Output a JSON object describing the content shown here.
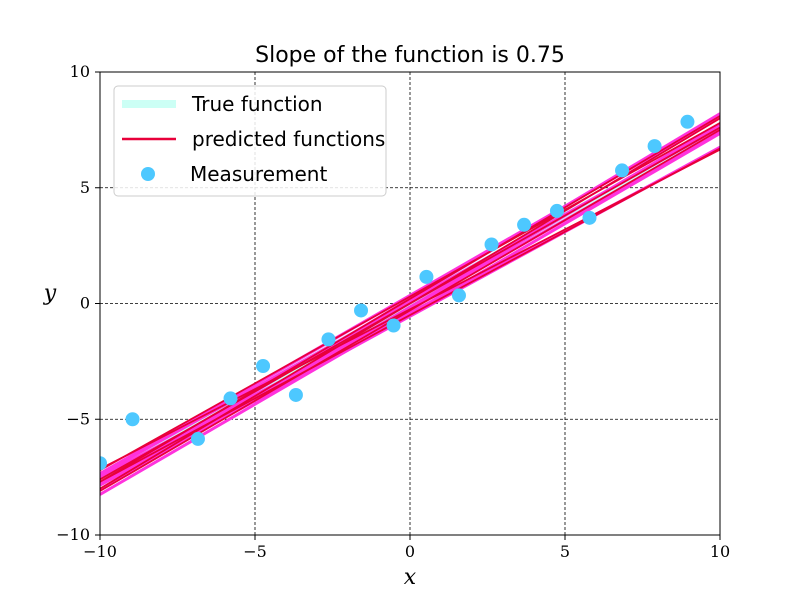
{
  "chart_data": {
    "type": "scatter",
    "title": "Slope of the function is 0.75",
    "xlabel": "x",
    "ylabel": "y",
    "xlim": [
      -10,
      10
    ],
    "ylim": [
      -10,
      10
    ],
    "xticks": [
      -10,
      -5,
      0,
      5,
      10
    ],
    "yticks": [
      -10,
      -5,
      0,
      5,
      10
    ],
    "xtick_labels": [
      "−10",
      "−5",
      "0",
      "5",
      "10"
    ],
    "ytick_labels": [
      "−10",
      "−5",
      "0",
      "5",
      "10"
    ],
    "grid": true,
    "grid_style": "dashed",
    "legend_position": "top-left",
    "colors": {
      "true_function": "#ccfff5",
      "predicted": "#e8003a",
      "band": "#ff33dd",
      "measurement": "#4dc8ff"
    },
    "true_function": {
      "name": "True function",
      "slope": 0.75,
      "intercept": 0,
      "x": [
        -10,
        10
      ],
      "y": [
        -7.5,
        7.5
      ]
    },
    "predicted_functions": {
      "name": "predicted functions",
      "lines": [
        {
          "slope": 0.76,
          "intercept": 0.0
        },
        {
          "slope": 0.78,
          "intercept": -0.3
        },
        {
          "slope": 0.75,
          "intercept": 0.3
        },
        {
          "slope": 0.79,
          "intercept": 0.2
        },
        {
          "slope": 0.72,
          "intercept": -0.5
        },
        {
          "slope": 0.8,
          "intercept": 0.0
        },
        {
          "slope": 0.69,
          "intercept": -0.25
        }
      ]
    },
    "band_lines": [
      {
        "slope": 0.8,
        "intercept": 0.2
      },
      {
        "slope": 0.77,
        "intercept": 0.35
      },
      {
        "slope": 0.78,
        "intercept": -0.45
      },
      {
        "slope": 0.73,
        "intercept": -0.55
      },
      {
        "slope": 0.79,
        "intercept": -0.15
      },
      {
        "slope": 0.75,
        "intercept": 0.1
      },
      {
        "slope": 0.76,
        "intercept": -0.2
      },
      {
        "slope": 0.71,
        "intercept": -0.4
      }
    ],
    "measurements": {
      "name": "Measurement",
      "x": [
        -10.0,
        -8.95,
        -6.84,
        -5.79,
        -4.74,
        -3.68,
        -2.63,
        -1.58,
        -0.53,
        0.53,
        1.58,
        2.63,
        3.68,
        4.74,
        5.79,
        6.84,
        7.89,
        8.95
      ],
      "y": [
        -6.9,
        -5.0,
        -5.85,
        -4.1,
        -2.7,
        -3.95,
        -1.55,
        -0.3,
        -0.95,
        1.15,
        0.35,
        2.55,
        3.4,
        4.0,
        3.7,
        5.75,
        6.8,
        7.85
      ]
    }
  }
}
